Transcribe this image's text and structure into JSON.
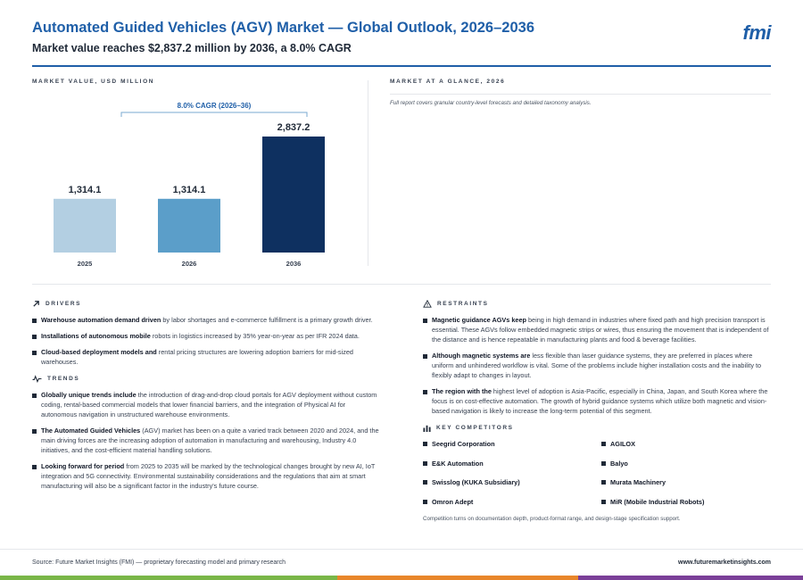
{
  "header": {
    "title": "Automated Guided Vehicles (AGV) Market — Global Outlook, 2026–2036",
    "subtitle": "Market value reaches $2,837.2 million by 2036, a 8.0% CAGR",
    "logo": "fmi"
  },
  "chart_section": {
    "label": "MARKET VALUE, USD MILLION"
  },
  "chart_data": {
    "type": "bar",
    "categories": [
      "2025",
      "2026",
      "2036"
    ],
    "values": [
      1314.1,
      1314.1,
      2837.2
    ],
    "value_labels": [
      "1,314.1",
      "1,314.1",
      "2,837.2"
    ],
    "colors": [
      "#b3cfe2",
      "#5b9ec9",
      "#0e3060"
    ],
    "ylim": [
      0,
      2837.2
    ],
    "annotation": "8.0% CAGR (2026–36)",
    "grid": false
  },
  "glance": {
    "label": "MARKET AT A GLANCE, 2026",
    "note": "Full report covers granular country-level forecasts and detailed taxonomy analysis."
  },
  "drivers": {
    "label": "DRIVERS",
    "items": [
      {
        "bold": "Warehouse automation demand driven",
        "text": " by labor shortages and e-commerce fulfillment is a primary growth driver."
      },
      {
        "bold": "Installations of autonomous mobile",
        "text": " robots in logistics increased by 35% year-on-year as per IFR 2024 data."
      },
      {
        "bold": "Cloud-based deployment models and",
        "text": " rental pricing structures are lowering adoption barriers for mid-sized warehouses."
      }
    ]
  },
  "trends": {
    "label": "TRENDS",
    "items": [
      {
        "bold": "Globally unique trends include",
        "text": " the introduction of drag-and-drop cloud portals for AGV deployment without custom coding, rental-based commercial models that lower financial barriers, and the integration of Physical AI for autonomous navigation in unstructured warehouse environments."
      },
      {
        "bold": "The Automated Guided Vehicles",
        "text": " (AGV) market has been on a quite a varied track between 2020 and 2024, and the main driving forces are the increasing adoption of automation in manufacturing and warehousing, Industry 4.0 initiatives, and the cost-efficient material handling solutions."
      },
      {
        "bold": "Looking forward for period",
        "text": " from 2025 to 2035 will be marked by the technological changes brought by new AI, IoT integration and 5G connectivity. Environmental sustainability considerations and the regulations that aim at smart manufacturing will also be a significant factor in the industry's future course."
      }
    ]
  },
  "restraints": {
    "label": "RESTRAINTS",
    "items": [
      {
        "bold": "Magnetic guidance AGVs keep",
        "text": " being in high demand in industries where fixed path and high precision transport is essential. These AGVs follow embedded magnetic strips or wires, thus ensuring the movement that is independent of the distance and is hence repeatable in manufacturing plants and food & beverage facilities."
      },
      {
        "bold": "Although magnetic systems are",
        "text": " less flexible than laser guidance systems, they are preferred in places where uniform and unhindered workflow is vital. Some of the problems include higher installation costs and the inability to flexibly adapt to changes in layout."
      },
      {
        "bold": "The region with the",
        "text": " highest level of adoption is Asia-Pacific, especially in China, Japan, and South Korea where the focus is on cost-effective automation. The growth of hybrid guidance systems which utilize both magnetic and vision-based navigation is likely to increase the long-term potential of this segment."
      }
    ]
  },
  "competitors": {
    "label": "KEY COMPETITORS",
    "items": [
      "Seegrid Corporation",
      "AGILOX",
      "E&K Automation",
      "Balyo",
      "Swisslog (KUKA Subsidiary)",
      "Murata Machinery",
      "Omron Adept",
      "MiR (Mobile Industrial Robots)"
    ],
    "note": "Competition turns on documentation depth, product-format range, and design-stage specification support."
  },
  "footer": {
    "source": "Source: Future Market Insights (FMI) — proprietary forecasting model and primary research",
    "url": "www.futuremarketinsights.com"
  },
  "strip_colors": [
    "#7ab648",
    "#e8862a",
    "#7b3f98"
  ]
}
